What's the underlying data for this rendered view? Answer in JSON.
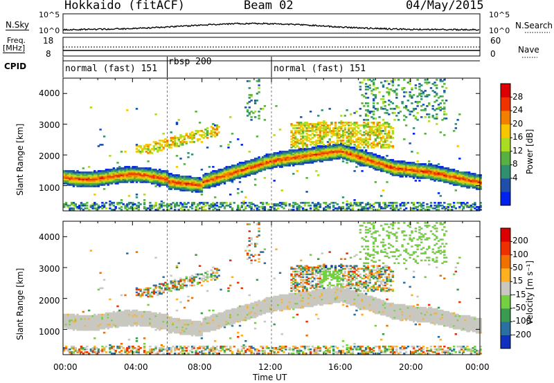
{
  "header": {
    "radar": "Hokkaido (fitACF)",
    "beam": "Beam 02",
    "date": "04/May/2015"
  },
  "noise_panel": {
    "left_label": "N.Sky",
    "right_label": "N.Search",
    "y_ticks": [
      "10^5",
      "10^0"
    ]
  },
  "freq_panel": {
    "left_label_top": "Freq.",
    "left_label_units": "[MHz]",
    "left_ticks": [
      "18",
      "8"
    ],
    "right_ticks": [
      "60",
      "0"
    ],
    "right_label": "Nave"
  },
  "cpid_panel": {
    "label": "CPID",
    "segments": [
      {
        "name": "normal (fast) 151",
        "start_hour": 0,
        "end_hour": 6
      },
      {
        "name": "rbsp 200",
        "start_hour": 6,
        "end_hour": 12
      },
      {
        "name": "normal (fast) 151",
        "start_hour": 12,
        "end_hour": 24
      }
    ]
  },
  "chart_data": [
    {
      "type": "heatmap",
      "name": "power",
      "ylabel": "Slant Range [km]",
      "ylim": [
        180,
        4500
      ],
      "y_ticks": [
        "4000",
        "3000",
        "2000",
        "1000"
      ],
      "colorbar_label": "Power [dB]",
      "colorbar_ticks": [
        "28",
        "24",
        "20",
        "16",
        "12",
        "8",
        "4"
      ],
      "colorbar_colors": [
        "#0022ee",
        "#1f4fa8",
        "#2f8f6e",
        "#58b040",
        "#aadd22",
        "#f7c600",
        "#f28000",
        "#ee3300",
        "#dd0000"
      ]
    },
    {
      "type": "heatmap",
      "name": "velocity",
      "ylabel": "Slant Range [km]",
      "ylim": [
        180,
        4500
      ],
      "y_ticks": [
        "4000",
        "3000",
        "2000",
        "1000"
      ],
      "colorbar_label": "Velocity [m s⁻¹]",
      "colorbar_ticks": [
        "200",
        "100",
        "50",
        "15",
        "-15",
        "-50",
        "-100",
        "-200"
      ],
      "colorbar_colors": [
        "#1030c0",
        "#2a70a0",
        "#3a9a50",
        "#74d040",
        "#c8c8c0",
        "#ffb020",
        "#f07000",
        "#ee3000",
        "#dd0000"
      ]
    }
  ],
  "x_axis": {
    "label": "Time UT",
    "xlim_hours": [
      0,
      24
    ],
    "ticks": [
      "00:00",
      "04:00",
      "08:00",
      "12:00",
      "16:00",
      "20:00",
      "00:00"
    ]
  }
}
